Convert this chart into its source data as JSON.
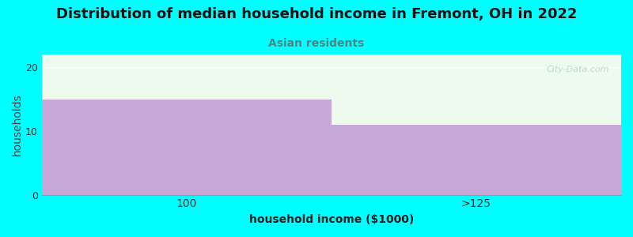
{
  "title": "Distribution of median household income in Fremont, OH in 2022",
  "subtitle": "Asian residents",
  "categories": [
    "100",
    ">125"
  ],
  "values": [
    15,
    11
  ],
  "bar_color": "#C8A8D8",
  "background_color": "#00FFFF",
  "plot_bg_color": "#EEFAEE",
  "xlabel": "household income ($1000)",
  "ylabel": "households",
  "ylim": [
    0,
    22
  ],
  "yticks": [
    0,
    10,
    20
  ],
  "title_fontsize": 13,
  "subtitle_fontsize": 10,
  "subtitle_color": "#448888",
  "axis_label_fontsize": 10,
  "watermark": "City-Data.com",
  "xtick_positions": [
    0.25,
    0.75
  ],
  "xtick_labels": [
    "100",
    ">125"
  ]
}
